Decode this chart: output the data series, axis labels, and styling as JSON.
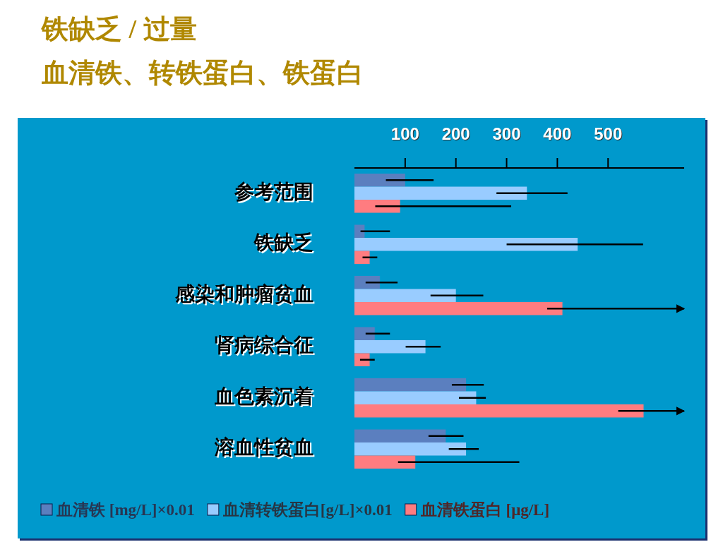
{
  "chart_data": {
    "type": "bar",
    "orientation": "horizontal",
    "title": "铁缺乏 / 过量",
    "subtitle": "血清铁、转铁蛋白、铁蛋白",
    "categories": [
      "参考范围",
      "铁缺乏",
      "感染和肿瘤贫血",
      "肾病综合征",
      "血色素沉着",
      "溶血性贫血"
    ],
    "series": [
      {
        "name": "血清铁 [mg/L]×0.01",
        "color": "#5b7fbf",
        "values": [
          100,
          20,
          50,
          40,
          220,
          180
        ],
        "errors": [
          [
            62,
            156
          ],
          [
            12,
            70
          ],
          [
            22,
            85
          ],
          [
            22,
            70
          ],
          [
            192,
            255
          ],
          [
            146,
            215
          ]
        ]
      },
      {
        "name": "血清转铁蛋白[g/L]×0.01",
        "color": "#99ccff",
        "values": [
          340,
          440,
          200,
          140,
          240,
          220
        ],
        "errors": [
          [
            280,
            420
          ],
          [
            300,
            569
          ],
          [
            150,
            254
          ],
          [
            101,
            170
          ],
          [
            206,
            259
          ],
          [
            186,
            245
          ]
        ]
      },
      {
        "name": "血清铁蛋白 [μg/L]",
        "color": "#ff7c80",
        "values": [
          90,
          30,
          410,
          30,
          570,
          120
        ],
        "errors": [
          [
            41,
            309
          ],
          [
            16,
            45
          ],
          [
            380,
            650
          ],
          [
            11,
            40
          ],
          [
            520,
            650
          ],
          [
            86,
            325
          ]
        ]
      }
    ],
    "xlim": [
      0,
      650
    ],
    "xticks": [
      100,
      200,
      300,
      400,
      500
    ],
    "grid": false,
    "legend": "bottom"
  }
}
